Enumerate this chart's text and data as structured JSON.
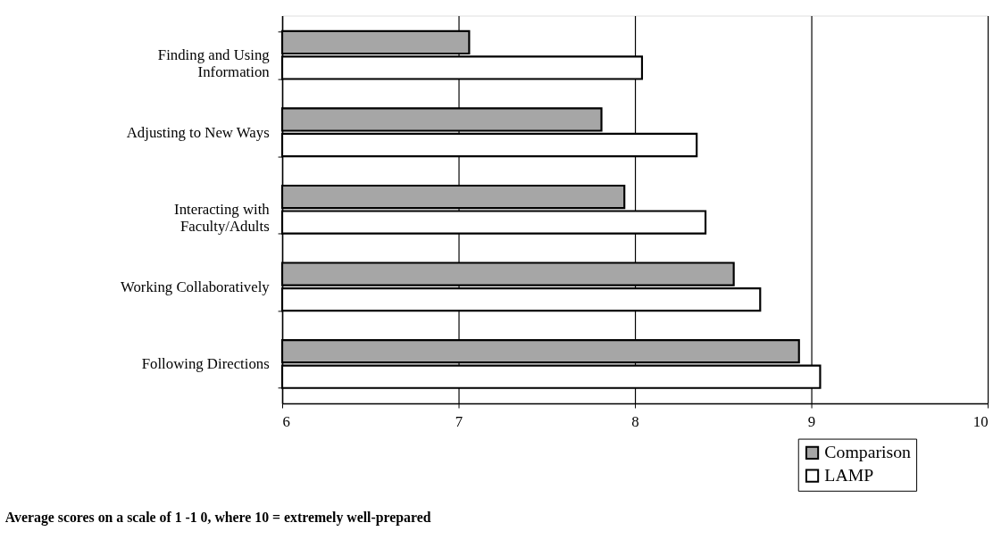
{
  "chart_data": {
    "type": "bar",
    "orientation": "horizontal",
    "categories": [
      "Finding and Using Information",
      "Adjusting to New Ways",
      "Interacting with Faculty/Adults",
      "Working Collaboratively",
      "Following Directions"
    ],
    "series": [
      {
        "name": "Comparison",
        "color": "#a6a6a6",
        "values": [
          7.06,
          7.81,
          7.94,
          8.56,
          8.93
        ]
      },
      {
        "name": "LAMP",
        "color": "#ffffff",
        "values": [
          8.04,
          8.35,
          8.4,
          8.71,
          9.05
        ]
      }
    ],
    "xlim": [
      6,
      10
    ],
    "xticks": [
      6,
      7,
      8,
      9,
      10
    ],
    "grid": "x",
    "legend": "bottom right",
    "annotations": [
      "Average scores on a scale of 1 -1 0, where 10 = extremely well-prepared"
    ]
  }
}
